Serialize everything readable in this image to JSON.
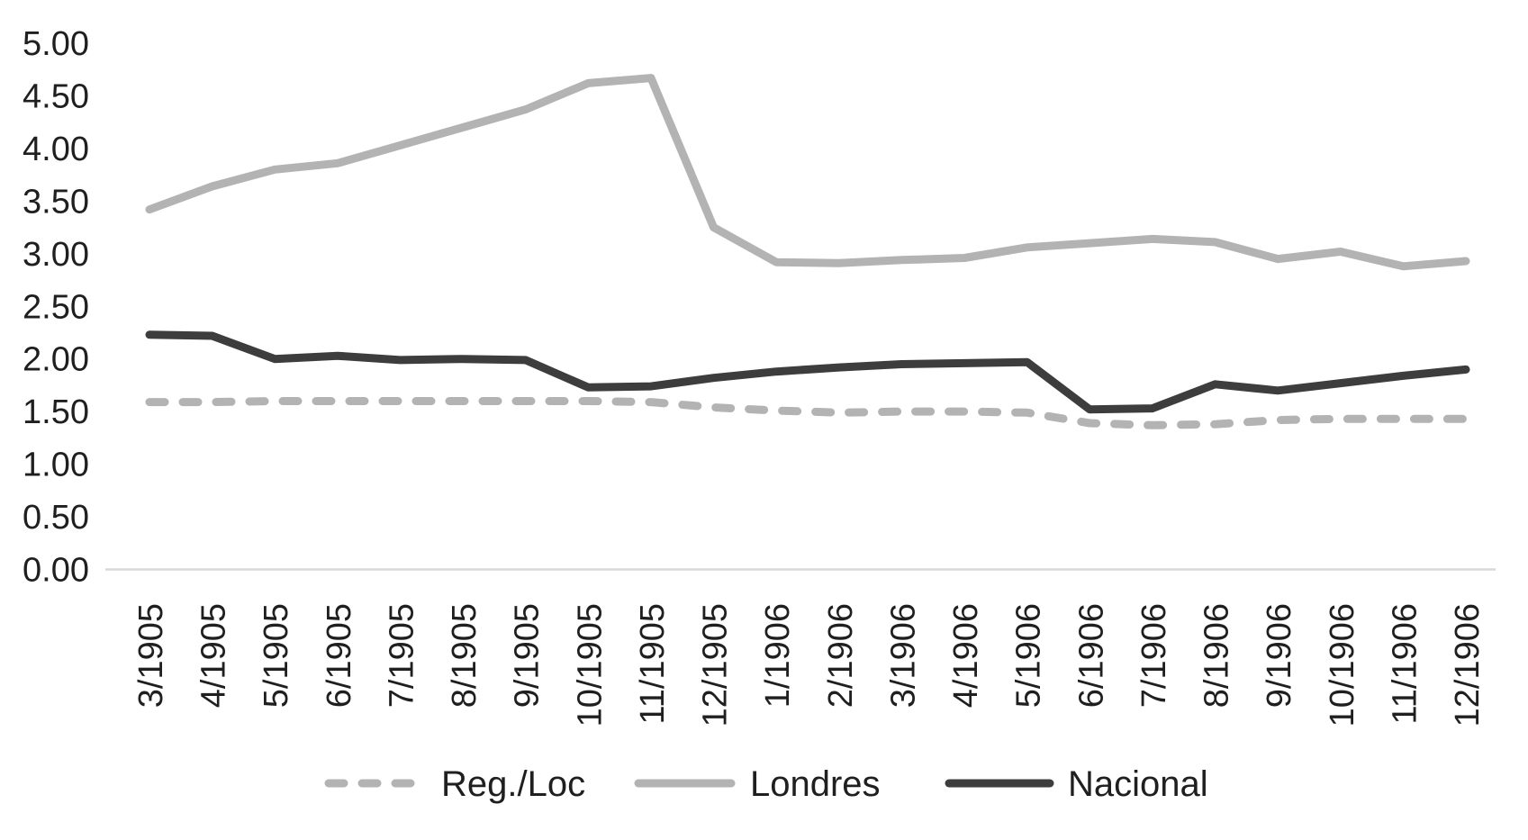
{
  "chart_data": {
    "type": "line",
    "title": "",
    "categories": [
      "3/1905",
      "4/1905",
      "5/1905",
      "6/1905",
      "7/1905",
      "8/1905",
      "9/1905",
      "10/1905",
      "11/1905",
      "12/1905",
      "1/1906",
      "2/1906",
      "3/1906",
      "4/1906",
      "5/1906",
      "6/1906",
      "7/1906",
      "8/1906",
      "9/1906",
      "10/1906",
      "11/1906",
      "12/1906"
    ],
    "series": [
      {
        "name": "Reg./Loc",
        "style": "dashed",
        "color": "#b3b3b3",
        "values": [
          1.59,
          1.59,
          1.6,
          1.6,
          1.6,
          1.6,
          1.6,
          1.6,
          1.59,
          1.54,
          1.51,
          1.49,
          1.5,
          1.5,
          1.49,
          1.39,
          1.37,
          1.38,
          1.42,
          1.43,
          1.43,
          1.43
        ]
      },
      {
        "name": "Londres",
        "style": "solid",
        "color": "#b3b3b3",
        "values": [
          3.42,
          3.64,
          3.8,
          3.86,
          4.03,
          4.2,
          4.37,
          4.62,
          4.67,
          3.25,
          2.92,
          2.91,
          2.94,
          2.96,
          3.06,
          3.1,
          3.14,
          3.11,
          2.95,
          3.02,
          2.88,
          2.93
        ]
      },
      {
        "name": "Nacional",
        "style": "solid",
        "color": "#3d3d3d",
        "values": [
          2.23,
          2.22,
          2.0,
          2.03,
          1.99,
          2.0,
          1.99,
          1.73,
          1.74,
          1.82,
          1.88,
          1.92,
          1.95,
          1.96,
          1.97,
          1.52,
          1.53,
          1.76,
          1.7,
          1.77,
          1.84,
          1.9
        ]
      }
    ],
    "xlabel": "",
    "ylabel": "",
    "y_axis": {
      "min": 0.0,
      "max": 5.0,
      "step": 0.5,
      "tick_labels": [
        "0.00",
        "0.50",
        "1.00",
        "1.50",
        "2.00",
        "2.50",
        "3.00",
        "3.50",
        "4.00",
        "4.50",
        "5.00"
      ]
    },
    "x_tick_rotation_deg": 90,
    "grid": "none",
    "axis_line_color": "#d9d9d9",
    "text_color": "#1f1f1f",
    "legend_position": "bottom"
  }
}
